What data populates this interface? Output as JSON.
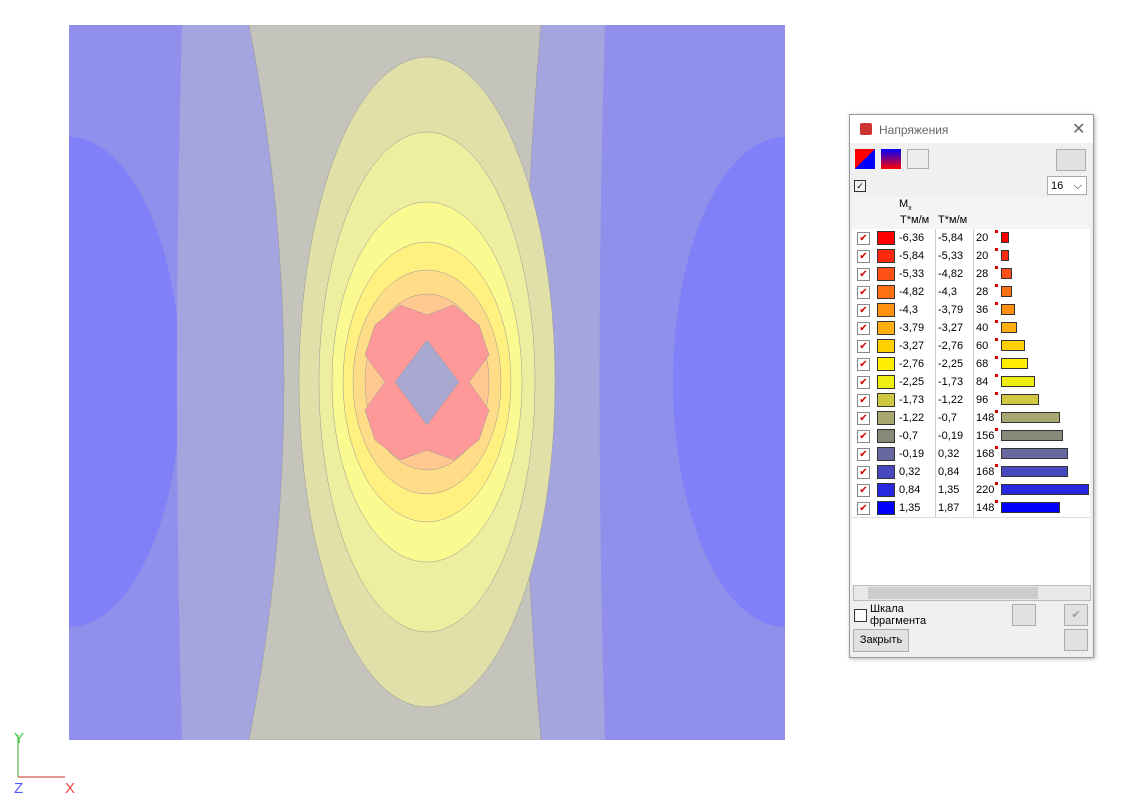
{
  "dialog": {
    "title": "Напряжения",
    "count_select": "16",
    "column_header": {
      "symbol": "M",
      "subscript": "x"
    },
    "units": [
      "Т*м/м",
      "Т*м/м"
    ],
    "rows": [
      {
        "from": "-6,36",
        "to": "-5,84",
        "count": 20,
        "color": "#ff0000"
      },
      {
        "from": "-5,84",
        "to": "-5,33",
        "count": 20,
        "color": "#ff2810"
      },
      {
        "from": "-5,33",
        "to": "-4,82",
        "count": 28,
        "color": "#ff5018"
      },
      {
        "from": "-4,82",
        "to": "-4,3",
        "count": 28,
        "color": "#ff7010"
      },
      {
        "from": "-4,3",
        "to": "-3,79",
        "count": 36,
        "color": "#ff9010"
      },
      {
        "from": "-3,79",
        "to": "-3,27",
        "count": 40,
        "color": "#ffb010"
      },
      {
        "from": "-3,27",
        "to": "-2,76",
        "count": 60,
        "color": "#ffd000"
      },
      {
        "from": "-2,76",
        "to": "-2,25",
        "count": 68,
        "color": "#ffee00"
      },
      {
        "from": "-2,25",
        "to": "-1,73",
        "count": 84,
        "color": "#eeee10"
      },
      {
        "from": "-1,73",
        "to": "-1,22",
        "count": 96,
        "color": "#d0c840"
      },
      {
        "from": "-1,22",
        "to": "-0,7",
        "count": 148,
        "color": "#a8a870"
      },
      {
        "from": "-0,7",
        "to": "-0,19",
        "count": 156,
        "color": "#888878"
      },
      {
        "from": "-0,19",
        "to": "0,32",
        "count": 168,
        "color": "#6868a0"
      },
      {
        "from": "0,32",
        "to": "0,84",
        "count": 168,
        "color": "#4848c0"
      },
      {
        "from": "0,84",
        "to": "1,35",
        "count": 220,
        "color": "#2828e0"
      },
      {
        "from": "1,35",
        "to": "1,87",
        "count": 148,
        "color": "#0000ff"
      }
    ],
    "fragment_scale": [
      "Шкала",
      "фрагмента"
    ],
    "close_button": "Закрыть"
  },
  "axes": {
    "y": "Y",
    "z": "Z",
    "x": "X"
  }
}
